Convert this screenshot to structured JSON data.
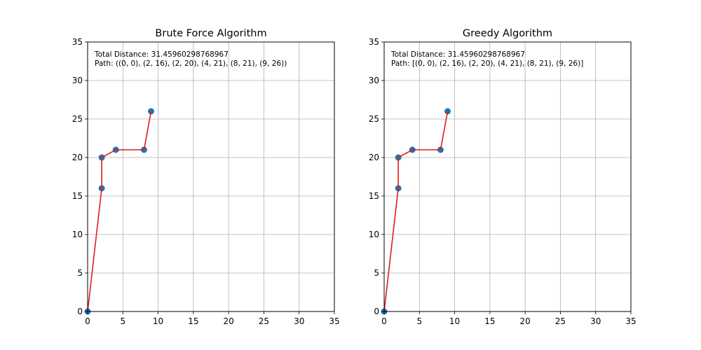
{
  "chart_data": [
    {
      "type": "line",
      "title": "Brute Force Algorithm",
      "xlabel": "",
      "ylabel": "",
      "xlim": [
        0,
        35
      ],
      "ylim": [
        0,
        35
      ],
      "grid": true,
      "xticks": [
        0,
        5,
        10,
        15,
        20,
        25,
        30,
        35
      ],
      "yticks": [
        0,
        5,
        10,
        15,
        20,
        25,
        30,
        35
      ],
      "points": [
        [
          0,
          0
        ],
        [
          2,
          16
        ],
        [
          2,
          20
        ],
        [
          4,
          21
        ],
        [
          8,
          21
        ],
        [
          9,
          26
        ]
      ],
      "path": [
        [
          0,
          0
        ],
        [
          2,
          16
        ],
        [
          2,
          20
        ],
        [
          4,
          21
        ],
        [
          8,
          21
        ],
        [
          9,
          26
        ]
      ],
      "point_color": "#1f77b4",
      "line_color": "#e41a1c",
      "annotation_lines": [
        "Total Distance: 31.45960298768967",
        "Path: ((0, 0), (2, 16), (2, 20), (4, 21), (8, 21), (9, 26))"
      ]
    },
    {
      "type": "line",
      "title": "Greedy Algorithm",
      "xlabel": "",
      "ylabel": "",
      "xlim": [
        0,
        35
      ],
      "ylim": [
        0,
        35
      ],
      "grid": true,
      "xticks": [
        0,
        5,
        10,
        15,
        20,
        25,
        30,
        35
      ],
      "yticks": [
        0,
        5,
        10,
        15,
        20,
        25,
        30,
        35
      ],
      "points": [
        [
          0,
          0
        ],
        [
          2,
          16
        ],
        [
          2,
          20
        ],
        [
          4,
          21
        ],
        [
          8,
          21
        ],
        [
          9,
          26
        ]
      ],
      "path": [
        [
          0,
          0
        ],
        [
          2,
          16
        ],
        [
          2,
          20
        ],
        [
          4,
          21
        ],
        [
          8,
          21
        ],
        [
          9,
          26
        ]
      ],
      "point_color": "#1f77b4",
      "line_color": "#e41a1c",
      "annotation_lines": [
        "Total Distance: 31.45960298768967",
        "Path: [(0, 0), (2, 16), (2, 20), (4, 21), (8, 21), (9, 26)]"
      ]
    }
  ]
}
